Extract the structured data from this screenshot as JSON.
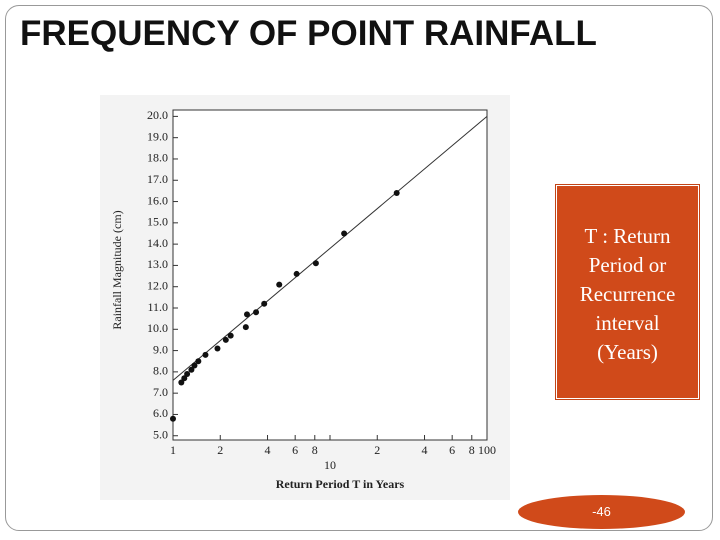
{
  "slide_title": "FREQUENCY OF POINT RAINFALL",
  "callout": "T : Return Period or Recurrence interval (Years)",
  "page_number": "-46",
  "chart_data": {
    "type": "scatter",
    "x_label": "Return Period T in Years",
    "y_label": "Rainfall Magnitude (cm)",
    "log_x": true,
    "color": "#111111",
    "x": [
      1.0,
      1.13,
      1.18,
      1.23,
      1.31,
      1.37,
      1.45,
      1.61,
      1.92,
      2.17,
      2.33,
      2.91,
      2.96,
      3.38,
      3.81,
      4.75,
      6.13,
      8.13,
      12.3,
      26.6
    ],
    "y": [
      5.8,
      7.5,
      7.7,
      7.9,
      8.1,
      8.3,
      8.5,
      8.8,
      9.1,
      9.5,
      9.7,
      10.1,
      10.7,
      10.8,
      11.2,
      12.1,
      12.6,
      13.1,
      14.5,
      16.4
    ],
    "trend": {
      "x": [
        1,
        100
      ],
      "y": [
        7.6,
        20.0
      ]
    },
    "xlim": [
      1,
      100
    ],
    "ylim": [
      4.8,
      20.3
    ],
    "xticks": [
      1,
      2,
      4,
      6,
      8,
      10,
      {
        "value": 20,
        "label": "2"
      },
      {
        "value": 40,
        "label": "4"
      },
      {
        "value": 60,
        "label": "6"
      },
      {
        "value": 80,
        "label": "8"
      },
      100
    ],
    "yticks": [
      {
        "value": 5,
        "label": "5.0"
      },
      {
        "value": 6,
        "label": "6.0"
      },
      {
        "value": 7,
        "label": "7.0"
      },
      {
        "value": 8,
        "label": "8.0"
      },
      {
        "value": 9,
        "label": "9.0"
      },
      {
        "value": 10,
        "label": "10.0"
      },
      {
        "value": 11,
        "label": "11.0"
      },
      {
        "value": 12,
        "label": "12.0"
      },
      {
        "value": 13,
        "label": "13.0"
      },
      {
        "value": 14,
        "label": "14.0"
      },
      {
        "value": 15,
        "label": "15.0"
      },
      {
        "value": 16,
        "label": "16.0"
      },
      {
        "value": 17,
        "label": "17.0"
      },
      {
        "value": 18,
        "label": "18.0"
      },
      {
        "value": 19,
        "label": "19.0"
      },
      {
        "value": 20,
        "label": "20.0"
      }
    ]
  }
}
